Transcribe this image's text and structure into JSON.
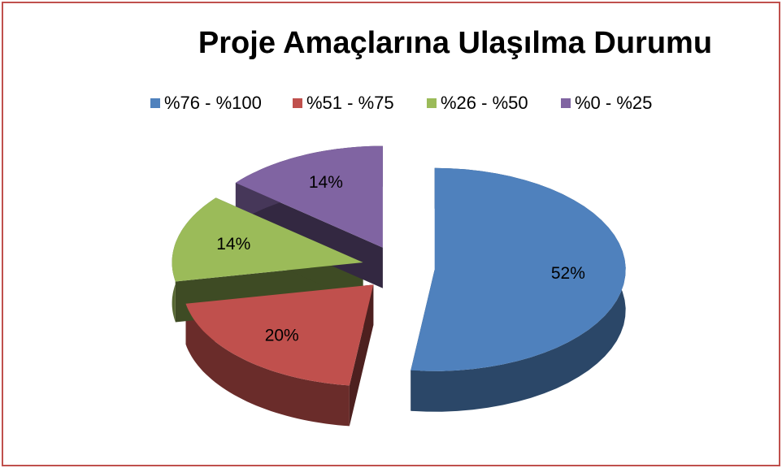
{
  "chart_data": {
    "type": "pie",
    "title": "Proje Amaçlarına Ulaşılma Durumu",
    "categories": [
      "%76 - %100",
      "%51 - %75",
      "%26 - %50",
      "%0 - %25"
    ],
    "values": [
      52,
      20,
      14,
      14
    ],
    "value_labels": [
      "52%",
      "20%",
      "14%",
      "14%"
    ],
    "colors": [
      "#4f81bd",
      "#c0504d",
      "#9bbb59",
      "#8064a2"
    ],
    "legend": "top"
  }
}
